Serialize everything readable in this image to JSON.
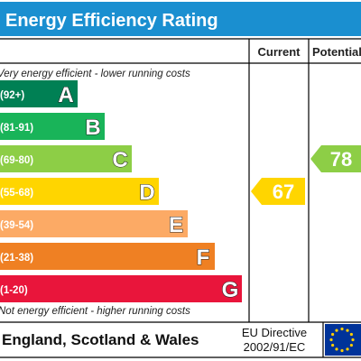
{
  "chart_data": {
    "type": "bar",
    "title": "Energy Efficiency Rating",
    "columns": {
      "current": "Current",
      "potential": "Potential"
    },
    "top_note": "Very energy efficient - lower running costs",
    "bottom_note": "Not energy efficient - higher running costs",
    "bands": [
      {
        "letter": "A",
        "range": "(92+)",
        "min": 92,
        "max": 100,
        "color": "#008054"
      },
      {
        "letter": "B",
        "range": "(81-91)",
        "min": 81,
        "max": 91,
        "color": "#19b459"
      },
      {
        "letter": "C",
        "range": "(69-80)",
        "min": 69,
        "max": 80,
        "color": "#8dce46"
      },
      {
        "letter": "D",
        "range": "(55-68)",
        "min": 55,
        "max": 68,
        "color": "#ffd500"
      },
      {
        "letter": "E",
        "range": "(39-54)",
        "min": 39,
        "max": 54,
        "color": "#fcaa65"
      },
      {
        "letter": "F",
        "range": "(21-38)",
        "min": 21,
        "max": 38,
        "color": "#ef8023"
      },
      {
        "letter": "G",
        "range": "(1-20)",
        "min": 1,
        "max": 20,
        "color": "#e9153b"
      }
    ],
    "current": {
      "value": 67,
      "band": "D",
      "color": "#ffd500"
    },
    "potential": {
      "value": 78,
      "band": "C",
      "color": "#8dce46"
    }
  },
  "footer": {
    "region": "England, Scotland & Wales",
    "directive_line1": "EU Directive",
    "directive_line2": "2002/91/EC"
  },
  "colors": {
    "title_bar": "#1a8fd0",
    "border": "#000000",
    "eu_flag": "#003399",
    "eu_stars": "#ffcc00"
  },
  "icons": {
    "flag": "eu-flag-icon"
  }
}
